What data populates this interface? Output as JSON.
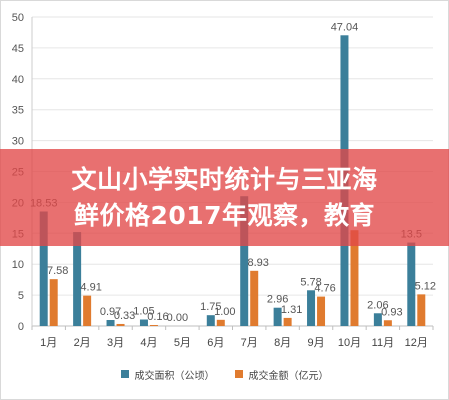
{
  "banner": {
    "line1": "文山小学实时统计与三亚海",
    "line2": "鲜价格2017年观察，教育"
  },
  "chart_data": {
    "type": "bar",
    "categories": [
      "1月",
      "2月",
      "3月",
      "4月",
      "5月",
      "6月",
      "7月",
      "8月",
      "9月",
      "10月",
      "11月",
      "12月"
    ],
    "ylim": [
      0,
      50
    ],
    "yticks": [
      0,
      5,
      10,
      15,
      20,
      25,
      30,
      35,
      40,
      45,
      50
    ],
    "grid": true,
    "legend_position": "bottom",
    "series": [
      {
        "name": "成交面积（公顷）",
        "color": "#3b7f9a",
        "values": [
          18.53,
          15.2,
          0.97,
          1.05,
          0.0,
          1.75,
          21.0,
          2.96,
          5.78,
          47.04,
          2.06,
          13.5
        ],
        "labels": [
          "18.53",
          "",
          "0.97",
          "1.05",
          "0.00",
          "1.75",
          "",
          "2.96",
          "5.78",
          "47.04",
          "2.06",
          "13.5"
        ]
      },
      {
        "name": "成交金额（亿元）",
        "color": "#e07b2f",
        "values": [
          7.58,
          4.91,
          0.33,
          0.16,
          0.0,
          1.0,
          8.93,
          1.31,
          4.76,
          15.5,
          0.93,
          5.12
        ],
        "labels": [
          "7.58",
          "4.91",
          "0.33",
          "0.16",
          "",
          "1.00",
          "8.93",
          "1.31",
          "4.76",
          "",
          "0.93",
          "5.12"
        ]
      }
    ]
  }
}
